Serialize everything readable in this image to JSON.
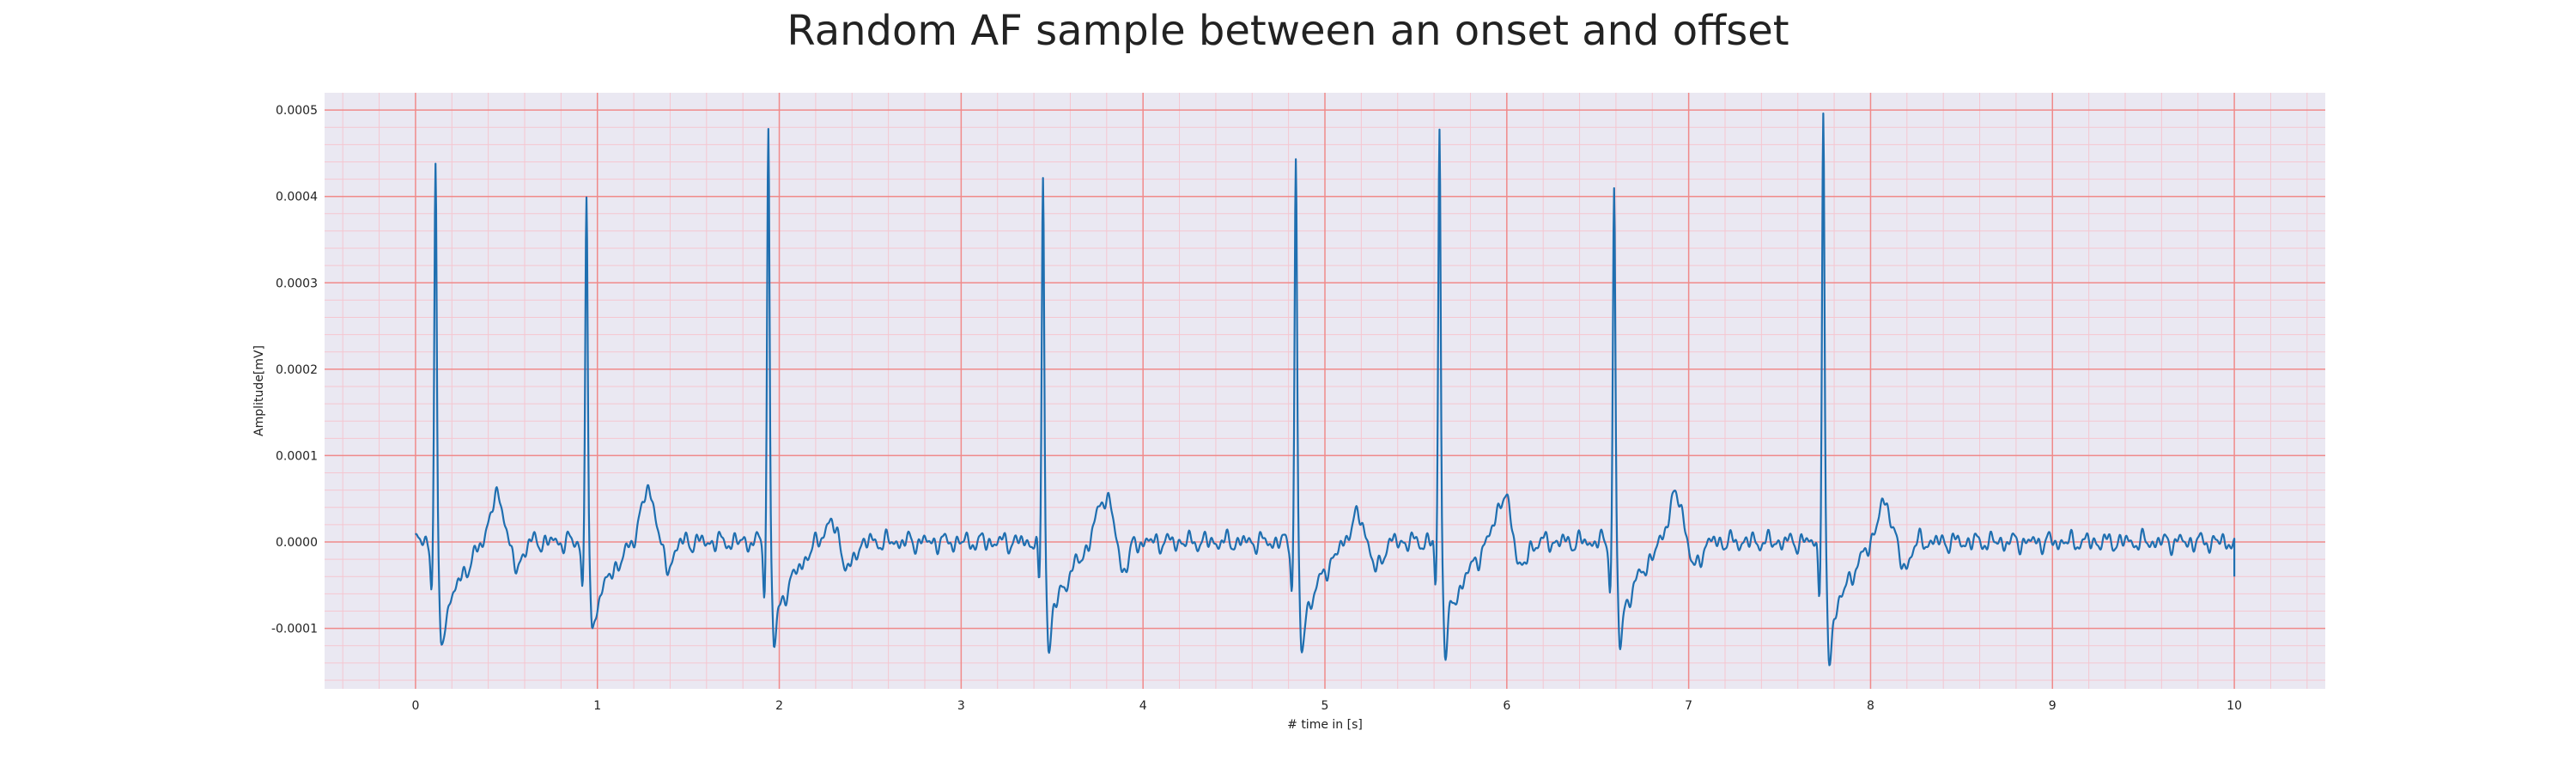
{
  "chart_data": {
    "type": "line",
    "title": "Random AF sample between an onset and offset",
    "xlabel": "# time in [s]",
    "ylabel": "Amplitude[mV]",
    "xlim": [
      -0.5,
      10.5
    ],
    "ylim": [
      -0.00017,
      0.00052
    ],
    "xticks": [
      0,
      1,
      2,
      3,
      4,
      5,
      6,
      7,
      8,
      9,
      10
    ],
    "yticks": [
      -0.0001,
      0.0,
      0.0001,
      0.0002,
      0.0003,
      0.0004,
      0.0005
    ],
    "ytick_labels": [
      "-0.0001",
      "0.0000",
      "0.0001",
      "0.0002",
      "0.0003",
      "0.0004",
      "0.0005"
    ],
    "grid": "ecg-grid",
    "colors": {
      "line": "#1f6fb0",
      "background": "#eae8f2",
      "major_grid": "#f08a8a",
      "minor_grid": "#f5c6d0"
    },
    "series": [
      {
        "beats": [
          {
            "t": 0.11,
            "peak": 0.00044,
            "trough_after": -0.00013
          },
          {
            "t": 0.94,
            "peak": 0.000403,
            "trough_after": -0.00011
          },
          {
            "t": 1.94,
            "peak": 0.000478,
            "trough_after": -0.000123
          },
          {
            "t": 3.45,
            "peak": 0.000423,
            "trough_after": -0.000126
          },
          {
            "t": 4.84,
            "peak": 0.000445,
            "trough_after": -0.00013
          },
          {
            "t": 5.63,
            "peak": 0.000483,
            "trough_after": -0.00013
          },
          {
            "t": 6.59,
            "peak": 0.000413,
            "trough_after": -0.000122
          },
          {
            "t": 7.74,
            "peak": 0.000487,
            "trough_after": -0.000139
          }
        ],
        "t_waves": [
          {
            "t": 0.45,
            "amp": 5e-05
          },
          {
            "t": 1.28,
            "amp": 5.7e-05
          },
          {
            "t": 2.28,
            "amp": 2e-05
          },
          {
            "t": 3.79,
            "amp": 5.3e-05
          },
          {
            "t": 5.18,
            "amp": 2.8e-05
          },
          {
            "t": 5.98,
            "amp": 5e-05
          },
          {
            "t": 6.93,
            "amp": 5.2e-05
          },
          {
            "t": 8.08,
            "amp": 4.3e-05
          }
        ]
      }
    ]
  }
}
